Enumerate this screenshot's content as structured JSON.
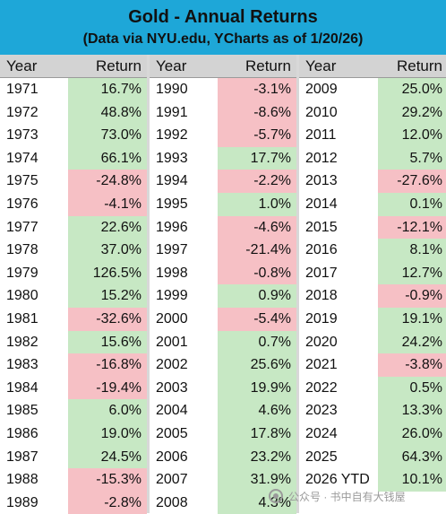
{
  "title": "Gold - Annual Returns",
  "subtitle": "(Data via NYU.edu, YCharts as of 1/20/26)",
  "headers": {
    "year": "Year",
    "return": "Return"
  },
  "colors": {
    "header_bg": "#1ea7d8",
    "positive": "#c7e8c4",
    "negative": "#f6c0c5",
    "column_header_bg": "#d3d3d3"
  },
  "watermark": {
    "icon": "wechat-icon",
    "text": "公众号 · 书中自有大钱屋"
  },
  "chart_data": {
    "type": "table",
    "title": "Gold - Annual Returns",
    "subtitle": "(Data via NYU.edu, YCharts as of 1/20/26)",
    "columns": [
      "Year",
      "Return"
    ],
    "rows": [
      [
        "1971",
        "16.7%"
      ],
      [
        "1972",
        "48.8%"
      ],
      [
        "1973",
        "73.0%"
      ],
      [
        "1974",
        "66.1%"
      ],
      [
        "1975",
        "-24.8%"
      ],
      [
        "1976",
        "-4.1%"
      ],
      [
        "1977",
        "22.6%"
      ],
      [
        "1978",
        "37.0%"
      ],
      [
        "1979",
        "126.5%"
      ],
      [
        "1980",
        "15.2%"
      ],
      [
        "1981",
        "-32.6%"
      ],
      [
        "1982",
        "15.6%"
      ],
      [
        "1983",
        "-16.8%"
      ],
      [
        "1984",
        "-19.4%"
      ],
      [
        "1985",
        "6.0%"
      ],
      [
        "1986",
        "19.0%"
      ],
      [
        "1987",
        "24.5%"
      ],
      [
        "1988",
        "-15.3%"
      ],
      [
        "1989",
        "-2.8%"
      ],
      [
        "1990",
        "-3.1%"
      ],
      [
        "1991",
        "-8.6%"
      ],
      [
        "1992",
        "-5.7%"
      ],
      [
        "1993",
        "17.7%"
      ],
      [
        "1994",
        "-2.2%"
      ],
      [
        "1995",
        "1.0%"
      ],
      [
        "1996",
        "-4.6%"
      ],
      [
        "1997",
        "-21.4%"
      ],
      [
        "1998",
        "-0.8%"
      ],
      [
        "1999",
        "0.9%"
      ],
      [
        "2000",
        "-5.4%"
      ],
      [
        "2001",
        "0.7%"
      ],
      [
        "2002",
        "25.6%"
      ],
      [
        "2003",
        "19.9%"
      ],
      [
        "2004",
        "4.6%"
      ],
      [
        "2005",
        "17.8%"
      ],
      [
        "2006",
        "23.2%"
      ],
      [
        "2007",
        "31.9%"
      ],
      [
        "2008",
        "4.3%"
      ],
      [
        "2009",
        "25.0%"
      ],
      [
        "2010",
        "29.2%"
      ],
      [
        "2011",
        "12.0%"
      ],
      [
        "2012",
        "5.7%"
      ],
      [
        "2013",
        "-27.6%"
      ],
      [
        "2014",
        "0.1%"
      ],
      [
        "2015",
        "-12.1%"
      ],
      [
        "2016",
        "8.1%"
      ],
      [
        "2017",
        "12.7%"
      ],
      [
        "2018",
        "-0.9%"
      ],
      [
        "2019",
        "19.1%"
      ],
      [
        "2020",
        "24.2%"
      ],
      [
        "2021",
        "-3.8%"
      ],
      [
        "2022",
        "0.5%"
      ],
      [
        "2023",
        "13.3%"
      ],
      [
        "2024",
        "26.0%"
      ],
      [
        "2025",
        "64.3%"
      ],
      [
        "2026 YTD",
        "10.1%"
      ]
    ]
  }
}
